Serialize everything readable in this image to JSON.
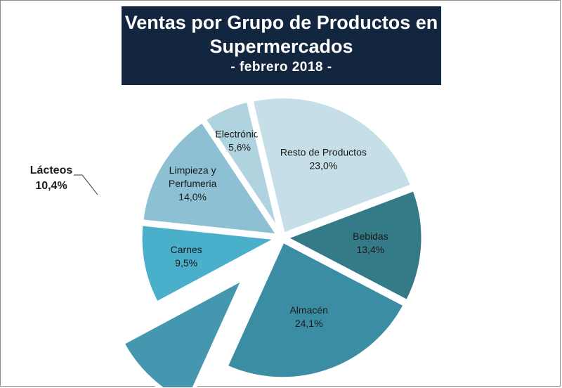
{
  "chart_data": {
    "type": "pie",
    "title_lines": [
      "Ventas por Grupo de Productos en",
      "Supermercados"
    ],
    "subtitle": "- febrero 2018 -",
    "slices": [
      {
        "label": [
          "Limpieza y",
          "Perfumeria"
        ],
        "value_label": "14,0%",
        "value": 14.0,
        "color": "#8dc0d3"
      },
      {
        "label": [
          "Electrónica"
        ],
        "value_label": "5,6%",
        "value": 5.6,
        "color": "#b0d3e0"
      },
      {
        "label": [
          "Resto de Productos"
        ],
        "value_label": "23,0%",
        "value": 23.0,
        "color": "#c5dee7"
      },
      {
        "label": [
          "Bebidas"
        ],
        "value_label": "13,4%",
        "value": 13.4,
        "color": "#357a87"
      },
      {
        "label": [
          "Almacén"
        ],
        "value_label": "24,1%",
        "value": 24.1,
        "color": "#3a8da3"
      },
      {
        "label": [
          "Lácteos"
        ],
        "value_label": "10,4%",
        "value": 10.4,
        "color": "#4497ae"
      },
      {
        "label": [
          "Carnes"
        ],
        "value_label": "9,5%",
        "value": 9.5,
        "color": "#4aafcb"
      }
    ]
  }
}
